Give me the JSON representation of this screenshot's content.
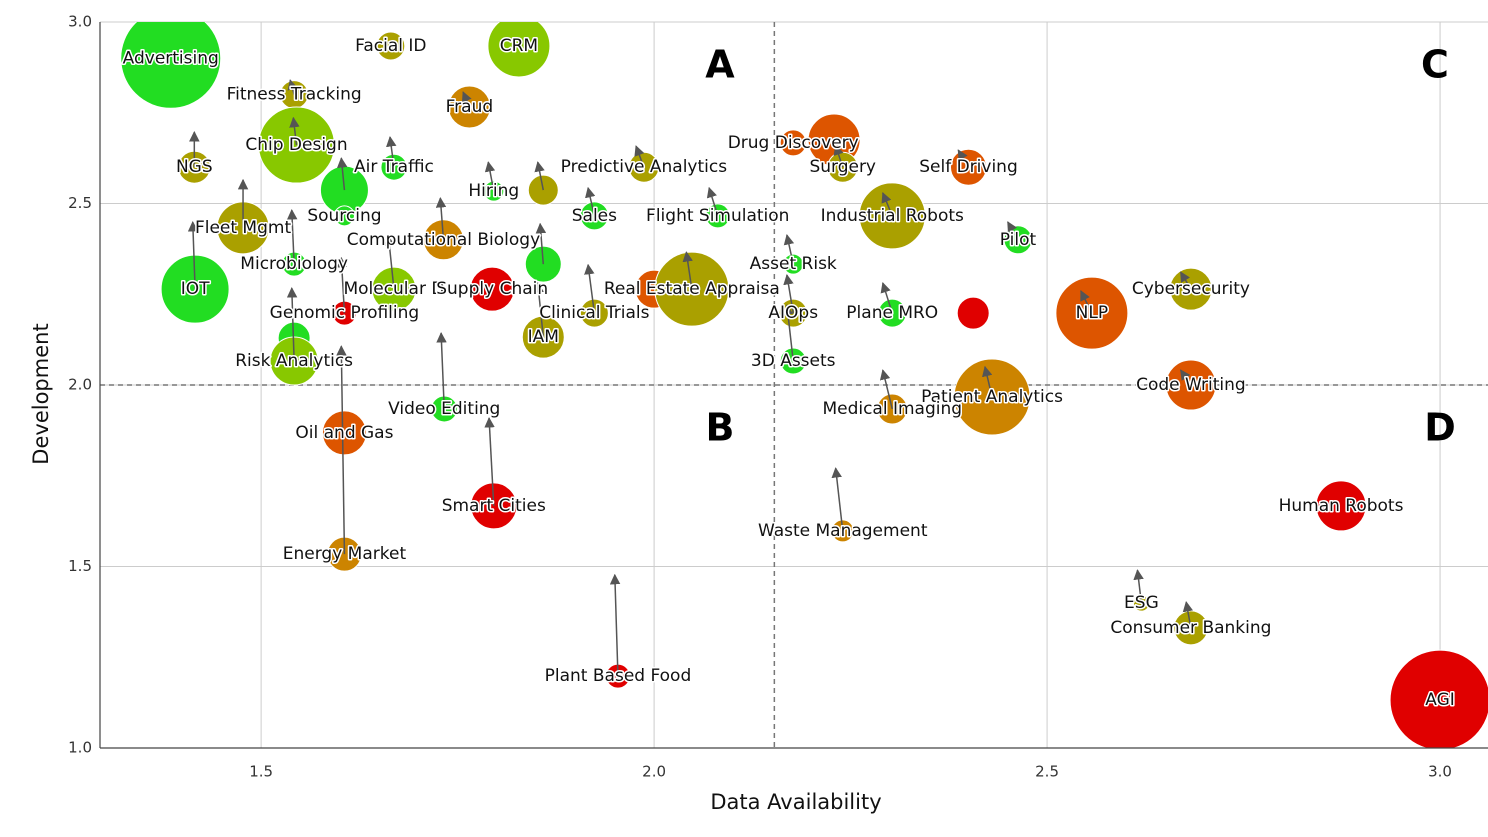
{
  "chart_data": {
    "type": "bubble",
    "x_label": "Data Availability",
    "y_label": "Development",
    "annotations": [
      "A",
      "B",
      "C",
      "D"
    ],
    "xlim": [
      1.295,
      3.061
    ],
    "ylim": [
      1.0,
      3.0
    ],
    "xticks": [
      {
        "value": 1.5,
        "label": "1.5"
      },
      {
        "value": 2.0,
        "label": "2.0"
      },
      {
        "value": 2.5,
        "label": "2.5"
      },
      {
        "value": 3.0,
        "label": "3.0"
      }
    ],
    "yticks": [
      {
        "value": 1.0,
        "label": "1.0"
      },
      {
        "value": 1.5,
        "label": "1.5"
      },
      {
        "value": 2.0,
        "label": "2.0"
      },
      {
        "value": 2.5,
        "label": "2.5"
      },
      {
        "value": 3.0,
        "label": "3.0"
      }
    ],
    "grid": true,
    "quadrant_x": 2.153,
    "quadrant_y": 2.0,
    "labels": [
      "Advertising",
      "Facial ID",
      "CRM",
      "Fitness Tracking",
      "Fraud",
      "Chip Design",
      "NGS",
      "Air Traffic",
      null,
      "Sourcing",
      "Predictive Analytics",
      "Hiring",
      null,
      "Sales",
      "Flight Simulation",
      "Drug Discovery",
      null,
      "Surgery",
      "Self Driving",
      "Industrial Robots",
      "Pilot",
      "Fleet Mgmt",
      "IOT",
      "Computational Biology",
      "Microbiology",
      "Molecular D",
      "Supply Chain",
      null,
      "Clinical Trials",
      "IAM",
      null,
      "Real Estate Appraisa",
      "Asset Risk",
      "AIOps",
      "Plane MRO",
      null,
      "NLP",
      "Cybersecurity",
      "Genomic Profiling",
      null,
      "Risk Analytics",
      "3D Assets",
      "Code Writing",
      "Patient Analytics",
      "Medical Imaging",
      "Video Editing",
      "Oil and Gas",
      "Smart Cities",
      "Energy Market",
      "Waste Management",
      "Plant Based Food",
      "ESG",
      "Consumer Banking",
      "Human Robots",
      "AGI"
    ],
    "x": [
      1.385,
      1.665,
      1.828,
      1.542,
      1.765,
      1.545,
      1.415,
      1.669,
      1.606,
      1.606,
      1.987,
      1.796,
      1.859,
      1.924,
      2.081,
      2.177,
      2.229,
      2.24,
      2.4,
      2.303,
      2.463,
      1.477,
      1.416,
      1.732,
      1.542,
      1.669,
      1.794,
      1.859,
      1.924,
      1.859,
      2.0,
      2.048,
      2.177,
      2.177,
      2.303,
      2.406,
      2.557,
      2.683,
      1.606,
      1.542,
      1.542,
      2.177,
      2.683,
      2.43,
      2.303,
      1.733,
      1.606,
      1.796,
      1.606,
      2.24,
      1.954,
      2.62,
      2.683,
      2.874,
      3.0
    ],
    "y": [
      2.9,
      2.934,
      2.934,
      2.8,
      2.766,
      2.661,
      2.6,
      2.6,
      2.537,
      2.466,
      2.6,
      2.534,
      2.537,
      2.466,
      2.466,
      2.667,
      2.675,
      2.6,
      2.6,
      2.466,
      2.4,
      2.433,
      2.264,
      2.4,
      2.333,
      2.264,
      2.264,
      2.333,
      2.198,
      2.132,
      2.264,
      2.264,
      2.333,
      2.198,
      2.198,
      2.198,
      2.198,
      2.264,
      2.198,
      2.129,
      2.066,
      2.066,
      2.0,
      1.967,
      1.934,
      1.934,
      1.868,
      1.667,
      1.534,
      1.598,
      1.198,
      1.399,
      1.331,
      1.667,
      1.132
    ],
    "sizes": [
      50,
      14,
      31,
      14,
      21,
      38,
      16,
      13,
      24,
      10,
      15,
      10,
      15,
      14,
      12,
      13,
      26,
      15,
      18,
      33,
      14,
      26,
      34,
      20,
      12,
      22,
      22,
      18,
      14,
      21,
      19,
      37,
      10,
      14,
      14,
      16,
      36,
      21,
      12,
      16,
      24,
      13,
      25,
      38,
      15,
      13,
      22,
      23,
      17,
      11,
      12,
      8,
      17,
      25,
      50
    ],
    "colors": [
      "#22dd22",
      "#aaa000",
      "#88c800",
      "#aaa000",
      "#cc8400",
      "#88c800",
      "#aaa000",
      "#22dd22",
      "#22dd22",
      "#22dd22",
      "#aaa000",
      "#22dd22",
      "#aaa000",
      "#22dd22",
      "#22dd22",
      "#dd5500",
      "#dd5500",
      "#aaa000",
      "#dd5500",
      "#aaa000",
      "#22dd22",
      "#aaa000",
      "#22dd22",
      "#cc8400",
      "#22dd22",
      "#88c800",
      "#e00000",
      "#22dd22",
      "#aaa000",
      "#aaa000",
      "#dd5500",
      "#aaa000",
      "#22dd22",
      "#aaa000",
      "#22dd22",
      "#e00000",
      "#dd5500",
      "#aaa000",
      "#e00000",
      "#22dd22",
      "#88c800",
      "#22dd22",
      "#dd5500",
      "#cc8400",
      "#cc8400",
      "#22dd22",
      "#dd5500",
      "#e00000",
      "#cc8400",
      "#cc8400",
      "#e00000",
      "#aaa000",
      "#aaa000",
      "#e00000",
      "#e00000"
    ],
    "arrow_x": [
      null,
      null,
      null,
      1.537,
      1.757,
      1.541,
      1.415,
      1.664,
      1.602,
      null,
      1.977,
      1.789,
      1.852,
      1.916,
      2.07,
      null,
      null,
      2.231,
      2.387,
      2.291,
      2.45,
      1.477,
      1.413,
      1.728,
      1.539,
      1.662,
      null,
      1.855,
      1.916,
      1.852,
      null,
      2.041,
      2.169,
      2.169,
      2.291,
      null,
      2.543,
      2.67,
      1.602,
      null,
      1.539,
      2.169,
      2.67,
      2.421,
      2.291,
      1.729,
      null,
      1.79,
      1.602,
      2.231,
      1.95,
      2.615,
      2.677,
      null,
      null
    ],
    "arrow_y": [
      null,
      null,
      null,
      2.84,
      2.807,
      2.736,
      2.697,
      2.683,
      2.625,
      null,
      2.658,
      2.614,
      2.614,
      2.543,
      2.543,
      null,
      null,
      2.66,
      2.647,
      2.529,
      2.449,
      2.565,
      2.449,
      2.515,
      2.482,
      2.41,
      null,
      2.444,
      2.331,
      2.281,
      null,
      2.366,
      2.413,
      2.303,
      2.281,
      null,
      2.259,
      2.311,
      2.35,
      null,
      2.267,
      2.22,
      2.041,
      2.05,
      2.041,
      2.143,
      null,
      1.909,
      2.107,
      1.771,
      1.477,
      1.49,
      1.402,
      null,
      null
    ]
  }
}
